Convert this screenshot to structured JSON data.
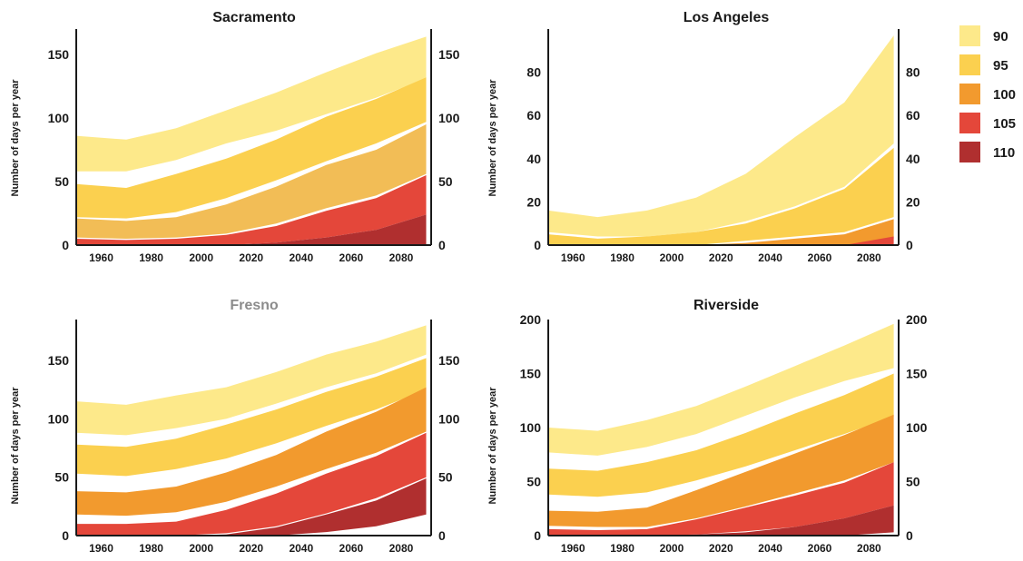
{
  "legend": {
    "items": [
      {
        "label": "90",
        "color": "#fde98a"
      },
      {
        "label": "95",
        "color": "#fbd04f"
      },
      {
        "label": "100",
        "color": "#f29a2e"
      },
      {
        "label": "105",
        "color": "#e4473a"
      },
      {
        "label": "110",
        "color": "#b02f2f"
      }
    ]
  },
  "chart_data": [
    {
      "type": "area",
      "title": "Sacramento",
      "ylabel": "Number of days per year",
      "x": [
        1950,
        1970,
        1990,
        2010,
        2030,
        2050,
        2070,
        2090
      ],
      "xticks": [
        1960,
        1980,
        2000,
        2020,
        2040,
        2060,
        2080
      ],
      "ylim": [
        0,
        170
      ],
      "yticks": [
        0,
        50,
        100,
        150
      ],
      "series": [
        {
          "name": "90",
          "color": "#fde98a",
          "upper": [
            86,
            83,
            92,
            106,
            120,
            136,
            151,
            164
          ],
          "lower": [
            58,
            58,
            67,
            80,
            90,
            103,
            116,
            131
          ]
        },
        {
          "name": "95",
          "color": "#fbd04f",
          "upper": [
            48,
            45,
            56,
            68,
            83,
            101,
            115,
            132
          ],
          "lower": [
            22,
            21,
            26,
            37,
            51,
            66,
            80,
            97
          ]
        },
        {
          "name": "100",
          "color": "#f2bd56",
          "upper": [
            21,
            19,
            22,
            32,
            46,
            63,
            75,
            95
          ],
          "lower": [
            6,
            5,
            6,
            9,
            17,
            29,
            39,
            56
          ]
        },
        {
          "name": "105",
          "color": "#e4473a",
          "upper": [
            5,
            4,
            5,
            8,
            15,
            27,
            37,
            55
          ],
          "lower": [
            0,
            0,
            0,
            0,
            2,
            6,
            12,
            24
          ]
        },
        {
          "name": "110",
          "color": "#b02f2f",
          "upper": [
            0,
            0,
            0,
            0,
            2,
            6,
            12,
            24
          ],
          "lower": [
            0,
            0,
            0,
            0,
            0,
            0,
            0,
            0
          ]
        }
      ]
    },
    {
      "type": "area",
      "title": "Los Angeles",
      "ylabel": "Number of days per year",
      "x": [
        1950,
        1970,
        1990,
        2010,
        2030,
        2050,
        2070,
        2090
      ],
      "xticks": [
        1960,
        1980,
        2000,
        2020,
        2040,
        2060,
        2080
      ],
      "ylim": [
        0,
        100
      ],
      "yticks": [
        0,
        20,
        40,
        60,
        80
      ],
      "series": [
        {
          "name": "90",
          "color": "#fde98a",
          "upper": [
            16,
            13,
            16,
            22,
            33,
            50,
            66,
            97
          ],
          "lower": [
            6,
            4,
            4,
            6,
            11,
            18,
            27,
            47
          ]
        },
        {
          "name": "95",
          "color": "#fbd04f",
          "upper": [
            5,
            3,
            4,
            6,
            10,
            17,
            26,
            45
          ],
          "lower": [
            0,
            0,
            0,
            0,
            2,
            4,
            6,
            13
          ]
        },
        {
          "name": "100",
          "color": "#f29a2e",
          "upper": [
            0,
            0,
            0,
            0,
            1,
            3,
            5,
            12
          ],
          "lower": [
            0,
            0,
            0,
            0,
            0,
            0,
            0,
            3
          ]
        },
        {
          "name": "105",
          "color": "#e4473a",
          "upper": [
            0,
            0,
            0,
            0,
            0,
            0,
            0,
            4
          ],
          "lower": [
            0,
            0,
            0,
            0,
            0,
            0,
            0,
            0
          ]
        }
      ]
    },
    {
      "type": "area",
      "title": "Fresno",
      "ylabel": "Number of days per year",
      "x": [
        1950,
        1970,
        1990,
        2010,
        2030,
        2050,
        2070,
        2090
      ],
      "xticks": [
        1960,
        1980,
        2000,
        2020,
        2040,
        2060,
        2080
      ],
      "ylim": [
        0,
        185
      ],
      "yticks": [
        0,
        50,
        100,
        150
      ],
      "series": [
        {
          "name": "90",
          "color": "#fde98a",
          "upper": [
            115,
            112,
            120,
            127,
            140,
            155,
            166,
            180
          ],
          "lower": [
            88,
            86,
            92,
            100,
            113,
            127,
            139,
            155
          ]
        },
        {
          "name": "95",
          "color": "#fbd04f",
          "upper": [
            78,
            76,
            83,
            95,
            108,
            123,
            136,
            152
          ],
          "lower": [
            53,
            51,
            57,
            66,
            79,
            94,
            108,
            125
          ]
        },
        {
          "name": "100",
          "color": "#f29a2e",
          "upper": [
            38,
            37,
            42,
            54,
            69,
            89,
            106,
            127
          ],
          "lower": [
            18,
            17,
            20,
            29,
            42,
            57,
            71,
            89
          ]
        },
        {
          "name": "105",
          "color": "#e4473a",
          "upper": [
            10,
            10,
            12,
            22,
            36,
            53,
            68,
            88
          ],
          "lower": [
            0,
            0,
            0,
            2,
            8,
            19,
            32,
            50
          ]
        },
        {
          "name": "110",
          "color": "#b02f2f",
          "upper": [
            0,
            0,
            0,
            1,
            7,
            18,
            30,
            49
          ],
          "lower": [
            0,
            0,
            0,
            0,
            0,
            3,
            8,
            18
          ]
        }
      ]
    },
    {
      "type": "area",
      "title": "Riverside",
      "ylabel": "Number of days per year",
      "x": [
        1950,
        1970,
        1990,
        2010,
        2030,
        2050,
        2070,
        2090
      ],
      "xticks": [
        1960,
        1980,
        2000,
        2020,
        2040,
        2060,
        2080
      ],
      "ylim": [
        0,
        200
      ],
      "yticks": [
        0,
        50,
        100,
        150,
        200
      ],
      "series": [
        {
          "name": "90",
          "color": "#fde98a",
          "upper": [
            100,
            97,
            107,
            120,
            138,
            157,
            176,
            196
          ],
          "lower": [
            77,
            74,
            82,
            94,
            111,
            128,
            143,
            155
          ]
        },
        {
          "name": "95",
          "color": "#fbd04f",
          "upper": [
            62,
            60,
            68,
            79,
            95,
            113,
            130,
            150
          ],
          "lower": [
            38,
            36,
            40,
            51,
            64,
            79,
            94,
            110
          ]
        },
        {
          "name": "100",
          "color": "#f29a2e",
          "upper": [
            23,
            22,
            26,
            42,
            59,
            76,
            93,
            112
          ],
          "lower": [
            9,
            8,
            8,
            16,
            27,
            39,
            51,
            68
          ]
        },
        {
          "name": "105",
          "color": "#e4473a",
          "upper": [
            6,
            5,
            6,
            15,
            26,
            37,
            49,
            68
          ],
          "lower": [
            0,
            0,
            0,
            1,
            4,
            8,
            16,
            28
          ]
        },
        {
          "name": "110",
          "color": "#b02f2f",
          "upper": [
            0,
            0,
            0,
            1,
            3,
            8,
            16,
            28
          ],
          "lower": [
            0,
            0,
            0,
            0,
            0,
            0,
            0,
            3
          ]
        }
      ]
    }
  ]
}
